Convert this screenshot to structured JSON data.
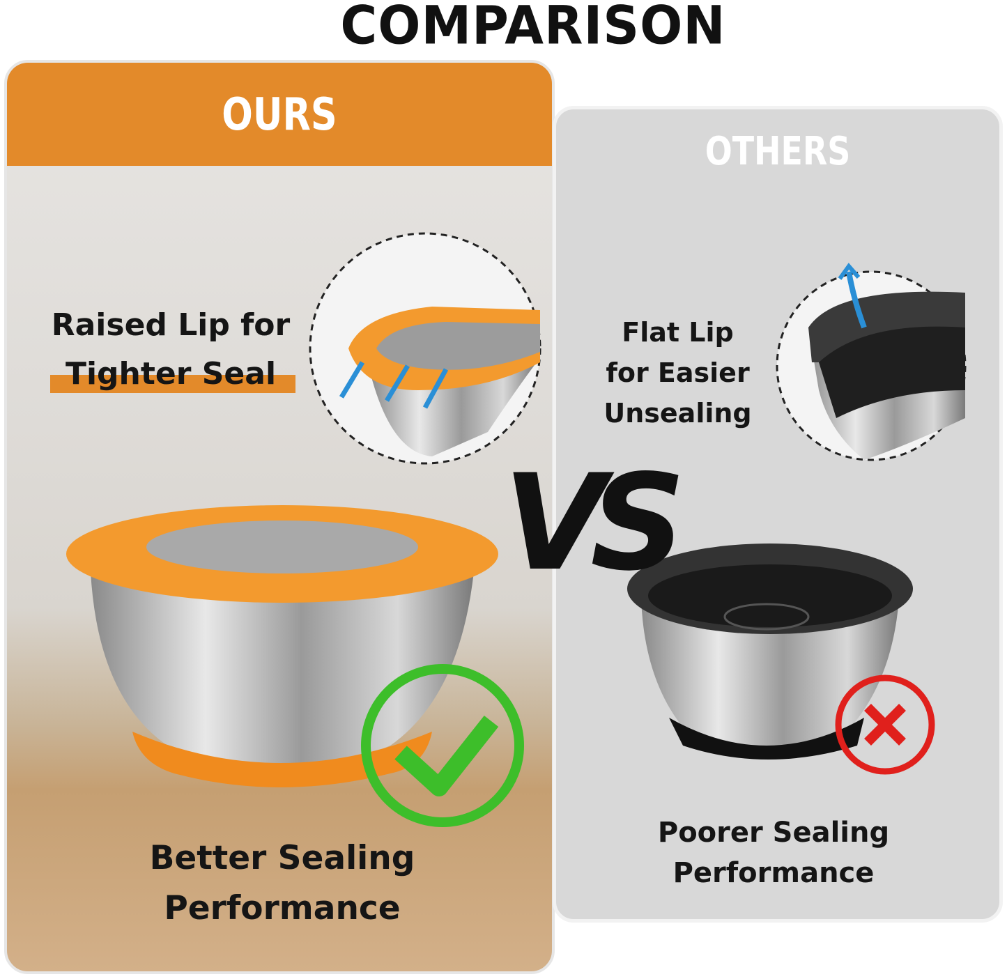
{
  "title": "COMPARISON",
  "ours": {
    "header": "OURS",
    "feature_lines": [
      "Raised Lip for",
      "Tighter Seal"
    ],
    "result_lines": [
      "Better Sealing",
      "Performance"
    ],
    "accent_color": "#e38a2a",
    "verdict_icon": "checkmark-icon",
    "verdict_color": "#3dbe2a"
  },
  "others": {
    "header": "OTHERS",
    "feature_lines": [
      "Flat Lip",
      "for Easier",
      "Unsealing"
    ],
    "result_lines": [
      "Poorer Sealing",
      "Performance"
    ],
    "verdict_icon": "cross-icon",
    "verdict_color": "#e0201c"
  },
  "vs": "VS"
}
